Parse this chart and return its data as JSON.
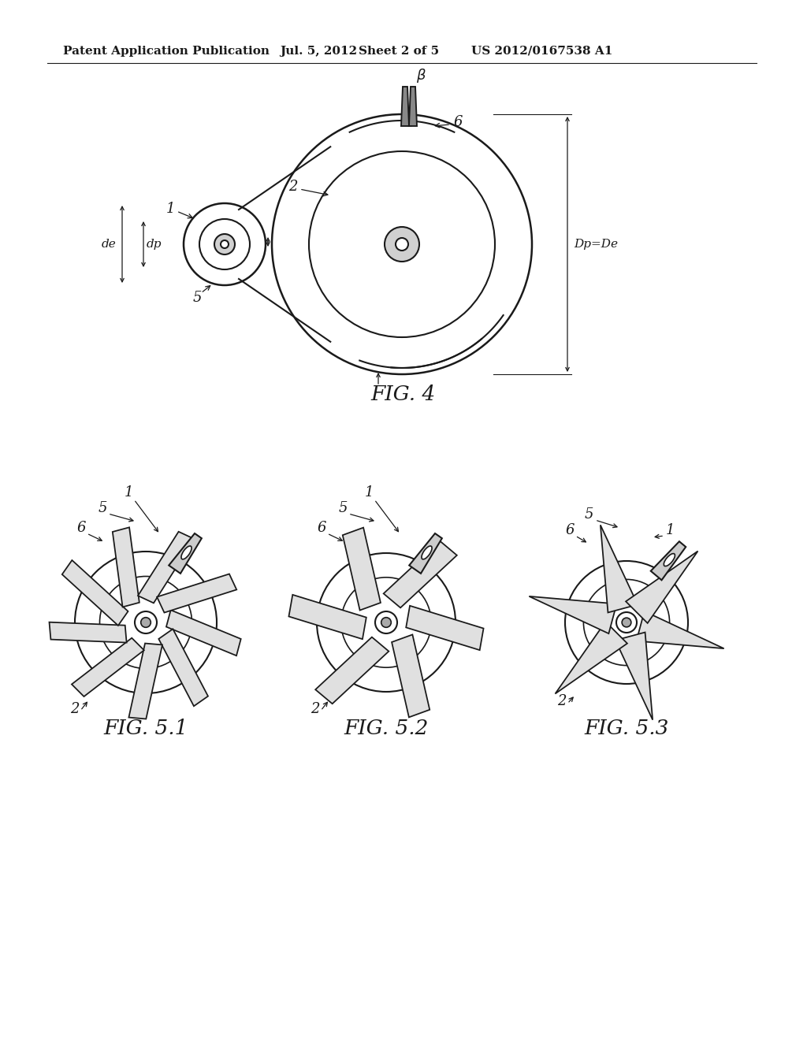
{
  "bg_color": "#ffffff",
  "header_text": "Patent Application Publication",
  "header_date": "Jul. 5, 2012",
  "header_sheet": "Sheet 2 of 5",
  "header_patent": "US 2012/0167538 A1",
  "fig4_label": "FIG. 4",
  "fig51_label": "FIG. 5.1",
  "fig52_label": "FIG. 5.2",
  "fig53_label": "FIG. 5.3",
  "line_color": "#1a1a1a",
  "line_width": 1.5,
  "label_fontsize": 13,
  "header_fontsize": 11,
  "fig_label_fontsize": 19
}
